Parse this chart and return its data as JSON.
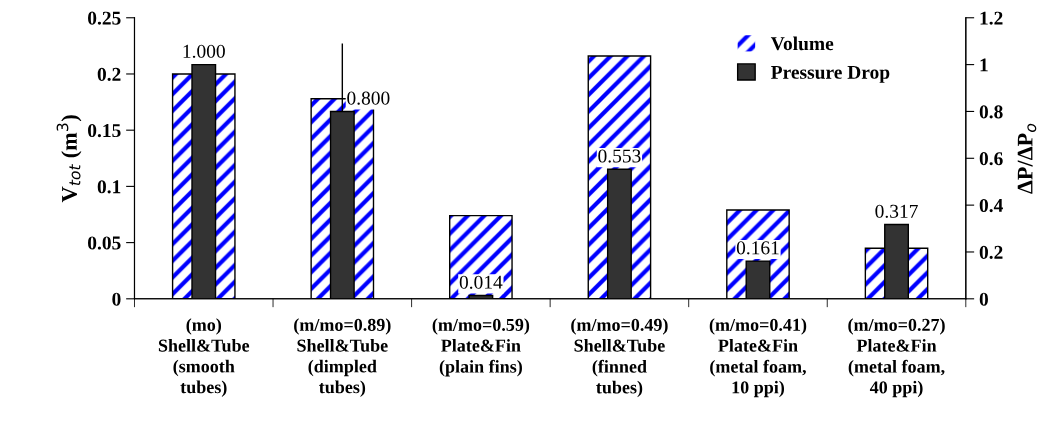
{
  "chart_data": {
    "type": "bar",
    "categories": [
      "(mo)\nShell&Tube\n(smooth\ntubes)",
      "(m/mo=0.89)\nShell&Tube\n(dimpled\ntubes)",
      "(m/mo=0.59)\nPlate&Fin\n(plain fins)",
      "(m/mo=0.49)\nShell&Tube\n(finned\ntubes)",
      "(m/mo=0.41)\nPlate&Fin\n(metal foam,\n10 ppi)",
      "(m/mo=0.27)\nPlate&Fin\n(metal foam,\n40 ppi)"
    ],
    "ylabel": "V$_{tot}$ (m$^{3}$)",
    "y2label": "ΔP/ΔP$_{o}$",
    "ylim": [
      0,
      0.25
    ],
    "yticks": [
      0,
      0.05,
      0.1,
      0.15,
      0.2,
      0.25
    ],
    "y2lim": [
      0,
      1.2
    ],
    "y2ticks": [
      0,
      0.2,
      0.4,
      0.6,
      0.8,
      1,
      1.2
    ],
    "legend": "top right",
    "grid": false,
    "series": [
      {
        "name": "Volume",
        "color": "#0000ff",
        "values": [
          0.2,
          0.178,
          0.074,
          0.216,
          0.079,
          0.045
        ]
      },
      {
        "name": "Pressure Drop",
        "color": "#333333",
        "axis": "y2",
        "values": [
          1.0,
          0.8,
          0.014,
          0.553,
          0.161,
          0.317
        ],
        "value_labels": [
          "1.000",
          "0.800",
          "0.014",
          "0.553",
          "0.161",
          "0.317"
        ],
        "errors": [
          null,
          [
            0.8,
            1.09
          ],
          null,
          null,
          null,
          null
        ]
      }
    ]
  }
}
